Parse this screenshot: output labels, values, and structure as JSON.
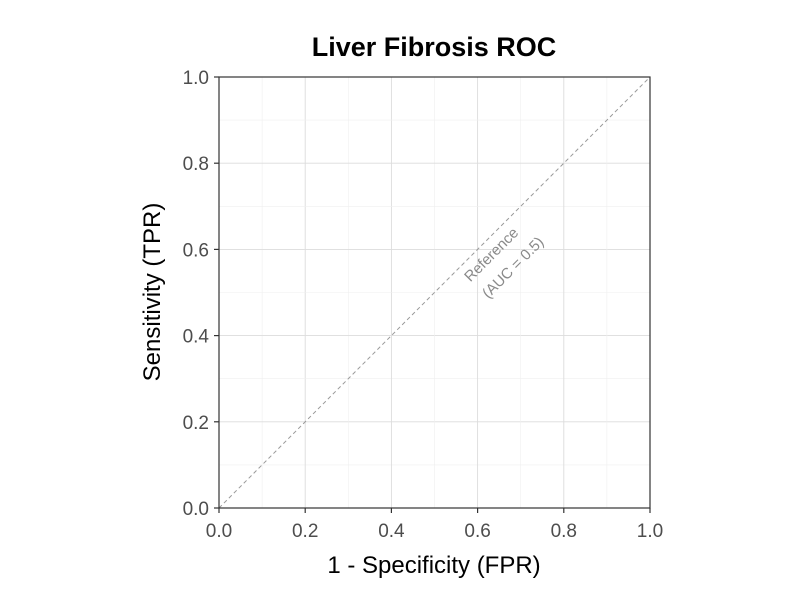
{
  "chart_data": {
    "type": "line",
    "title": "Liver Fibrosis ROC",
    "xlabel": "1 - Specificity (FPR)",
    "ylabel": "Sensitivity (TPR)",
    "xlim": [
      0,
      1
    ],
    "ylim": [
      0,
      1
    ],
    "x_ticks": [
      "0.0",
      "0.2",
      "0.4",
      "0.6",
      "0.8",
      "1.0"
    ],
    "y_ticks": [
      "0.0",
      "0.2",
      "0.4",
      "0.6",
      "0.8",
      "1.0"
    ],
    "grid": true,
    "reference_line": {
      "x": [
        0,
        1
      ],
      "y": [
        0,
        1
      ],
      "style": "dashed",
      "color": "#9a9a9a"
    },
    "annotations": [
      {
        "text": "Reference",
        "x": 0.64,
        "y": 0.58,
        "angle": -45
      },
      {
        "text": "(AUC = 0.5)",
        "x": 0.69,
        "y": 0.55,
        "angle": -45
      }
    ],
    "series": []
  }
}
